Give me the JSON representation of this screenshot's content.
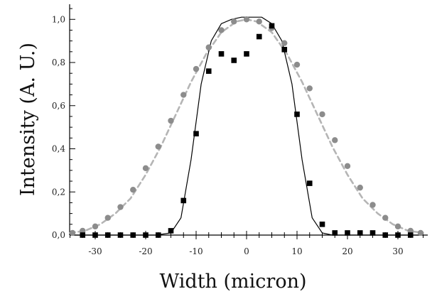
{
  "chart_data": {
    "type": "scatter",
    "xlabel": "Width (micron)",
    "ylabel": "Intensity (A. U.)",
    "xlim": [
      -35,
      35
    ],
    "ylim": [
      0,
      1.07
    ],
    "x_ticks": [
      -30,
      -20,
      -10,
      0,
      10,
      20,
      30
    ],
    "x_tick_labels": [
      "-30",
      "-20",
      "-10",
      "0",
      "10",
      "20",
      "30"
    ],
    "x_minor_step": 2.5,
    "y_ticks": [
      0,
      0.2,
      0.4,
      0.6,
      0.8,
      1.0
    ],
    "y_tick_labels": [
      "0,0",
      "0,2",
      "0,4",
      "0,6",
      "0,8",
      "1,0"
    ],
    "y_minor_step": 0.05,
    "grid": false,
    "legend": "none",
    "series": [
      {
        "style": "gray-circles",
        "color": "#8c8c8c",
        "x": [
          -34.5,
          -32.5,
          -30,
          -27.5,
          -25,
          -22.5,
          -20,
          -17.5,
          -15,
          -12.5,
          -10,
          -7.5,
          -5,
          -2.5,
          0,
          2.5,
          5,
          7.5,
          10,
          12.5,
          15,
          17.5,
          20,
          22.5,
          25,
          27.5,
          30,
          32.5,
          34.5
        ],
        "y": [
          0.01,
          0.02,
          0.04,
          0.08,
          0.13,
          0.21,
          0.31,
          0.41,
          0.53,
          0.65,
          0.77,
          0.87,
          0.95,
          0.99,
          1.0,
          0.99,
          0.96,
          0.89,
          0.79,
          0.68,
          0.56,
          0.44,
          0.32,
          0.22,
          0.14,
          0.08,
          0.04,
          0.02,
          0.01
        ]
      },
      {
        "style": "gray-dashed-line",
        "color": "#b5b5b5",
        "x": [
          -35,
          -32,
          -29,
          -26,
          -23,
          -20,
          -17,
          -14,
          -11,
          -8,
          -5,
          -2,
          0,
          2,
          5,
          8,
          11,
          14,
          17,
          20,
          23,
          26,
          29,
          32,
          35
        ],
        "y": [
          0.01,
          0.02,
          0.05,
          0.1,
          0.17,
          0.28,
          0.41,
          0.56,
          0.71,
          0.84,
          0.94,
          0.99,
          1.0,
          0.99,
          0.94,
          0.84,
          0.71,
          0.56,
          0.41,
          0.28,
          0.17,
          0.1,
          0.05,
          0.02,
          0.01
        ]
      },
      {
        "style": "black-squares",
        "color": "#000000",
        "x": [
          -32.5,
          -30,
          -27.5,
          -25,
          -22.5,
          -20,
          -17.5,
          -15,
          -12.5,
          -10,
          -7.5,
          -5,
          -2.5,
          0,
          2.5,
          5,
          7.5,
          10,
          12.5,
          15,
          17.5,
          20,
          22.5,
          25,
          27.5,
          30,
          32.5
        ],
        "y": [
          0.0,
          0.0,
          0.0,
          0.0,
          0.0,
          0.0,
          0.0,
          0.02,
          0.16,
          0.47,
          0.76,
          0.84,
          0.81,
          0.84,
          0.92,
          0.97,
          0.86,
          0.56,
          0.24,
          0.05,
          0.01,
          0.01,
          0.01,
          0.01,
          0.0,
          0.0,
          0.0
        ]
      },
      {
        "style": "black-solid-line",
        "color": "#000000",
        "x": [
          -35,
          -18,
          -15,
          -13,
          -11,
          -9,
          -7,
          -5,
          -3,
          -1,
          1,
          3,
          5,
          7,
          9,
          11,
          13,
          15,
          17,
          35
        ],
        "y": [
          0.0,
          0.0,
          0.01,
          0.08,
          0.35,
          0.7,
          0.9,
          0.98,
          1.0,
          1.01,
          1.01,
          1.01,
          0.98,
          0.9,
          0.7,
          0.35,
          0.08,
          0.01,
          0.0,
          0.0
        ]
      }
    ]
  }
}
